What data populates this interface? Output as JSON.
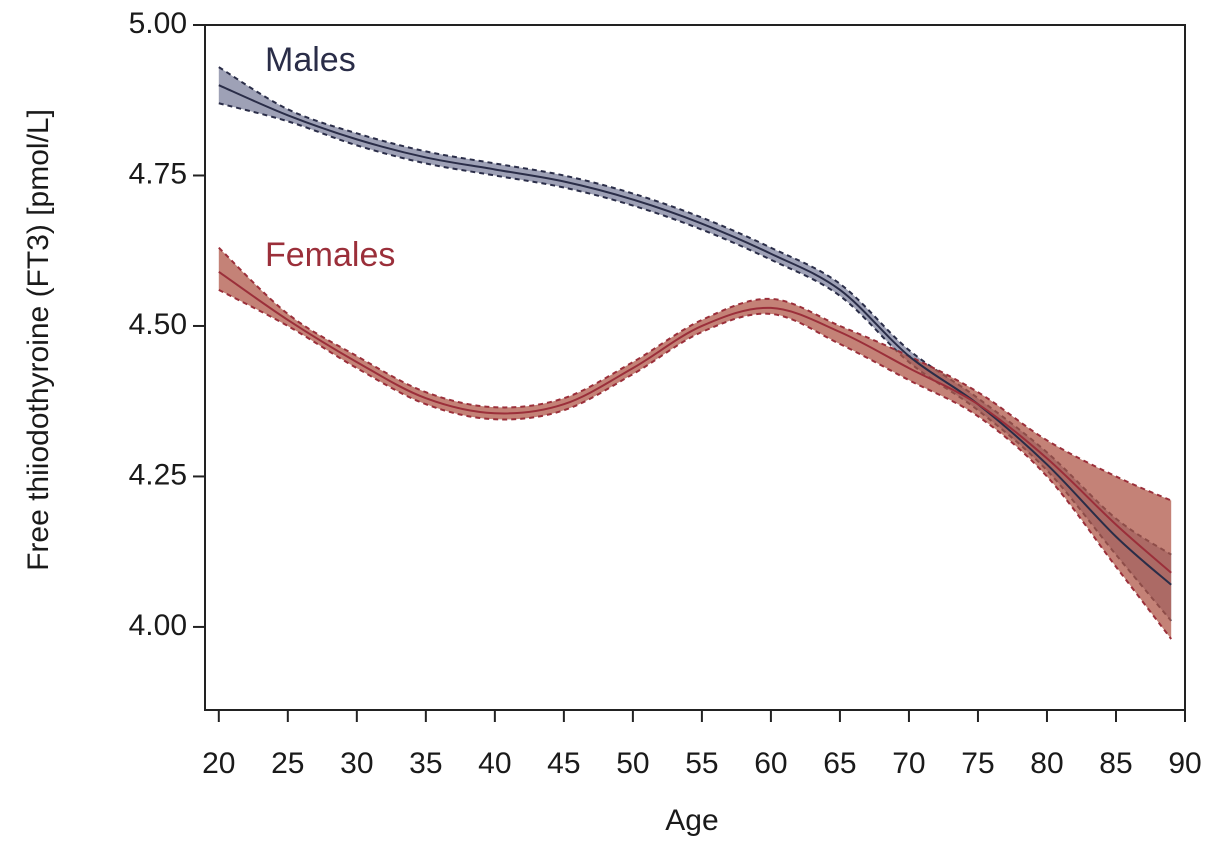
{
  "chart_data": {
    "type": "line",
    "x_label": "Age",
    "y_label": "Free thiiodothyroine (FT3) [pmol/L]",
    "x": [
      20,
      25,
      30,
      35,
      40,
      45,
      50,
      55,
      60,
      65,
      70,
      75,
      80,
      85,
      89
    ],
    "xlim": [
      19,
      90
    ],
    "xticks": [
      20,
      25,
      30,
      35,
      40,
      45,
      50,
      55,
      60,
      65,
      70,
      75,
      80,
      85,
      90
    ],
    "ylim": [
      3.862,
      5.0
    ],
    "yticks": [
      {
        "value": 5.0,
        "label": "5.00"
      },
      {
        "value": 4.75,
        "label": "4.75"
      },
      {
        "value": 4.5,
        "label": "4.50"
      },
      {
        "value": 4.25,
        "label": "4.25"
      },
      {
        "value": 4.0,
        "label": "4.00"
      }
    ],
    "series": [
      {
        "name": "Males",
        "color": "#2a2d48",
        "band_color": "#7d829e",
        "values": [
          4.9,
          4.85,
          4.81,
          4.78,
          4.76,
          4.74,
          4.71,
          4.67,
          4.62,
          4.56,
          4.45,
          4.37,
          4.27,
          4.15,
          4.07
        ],
        "lower": [
          4.87,
          4.84,
          4.8,
          4.77,
          4.75,
          4.73,
          4.7,
          4.66,
          4.61,
          4.55,
          4.44,
          4.36,
          4.26,
          4.12,
          4.01
        ],
        "upper": [
          4.93,
          4.86,
          4.82,
          4.79,
          4.77,
          4.75,
          4.72,
          4.68,
          4.63,
          4.57,
          4.46,
          4.38,
          4.29,
          4.18,
          4.12
        ]
      },
      {
        "name": "Females",
        "color": "#9b2f3a",
        "band_color": "#b0584a",
        "values": [
          4.59,
          4.51,
          4.44,
          4.38,
          4.355,
          4.37,
          4.43,
          4.5,
          4.53,
          4.49,
          4.43,
          4.37,
          4.28,
          4.17,
          4.09
        ],
        "lower": [
          4.56,
          4.5,
          4.43,
          4.37,
          4.345,
          4.36,
          4.42,
          4.49,
          4.52,
          4.47,
          4.41,
          4.35,
          4.25,
          4.1,
          3.98
        ],
        "upper": [
          4.63,
          4.52,
          4.45,
          4.39,
          4.365,
          4.38,
          4.44,
          4.51,
          4.545,
          4.5,
          4.45,
          4.39,
          4.31,
          4.25,
          4.21
        ]
      }
    ]
  }
}
